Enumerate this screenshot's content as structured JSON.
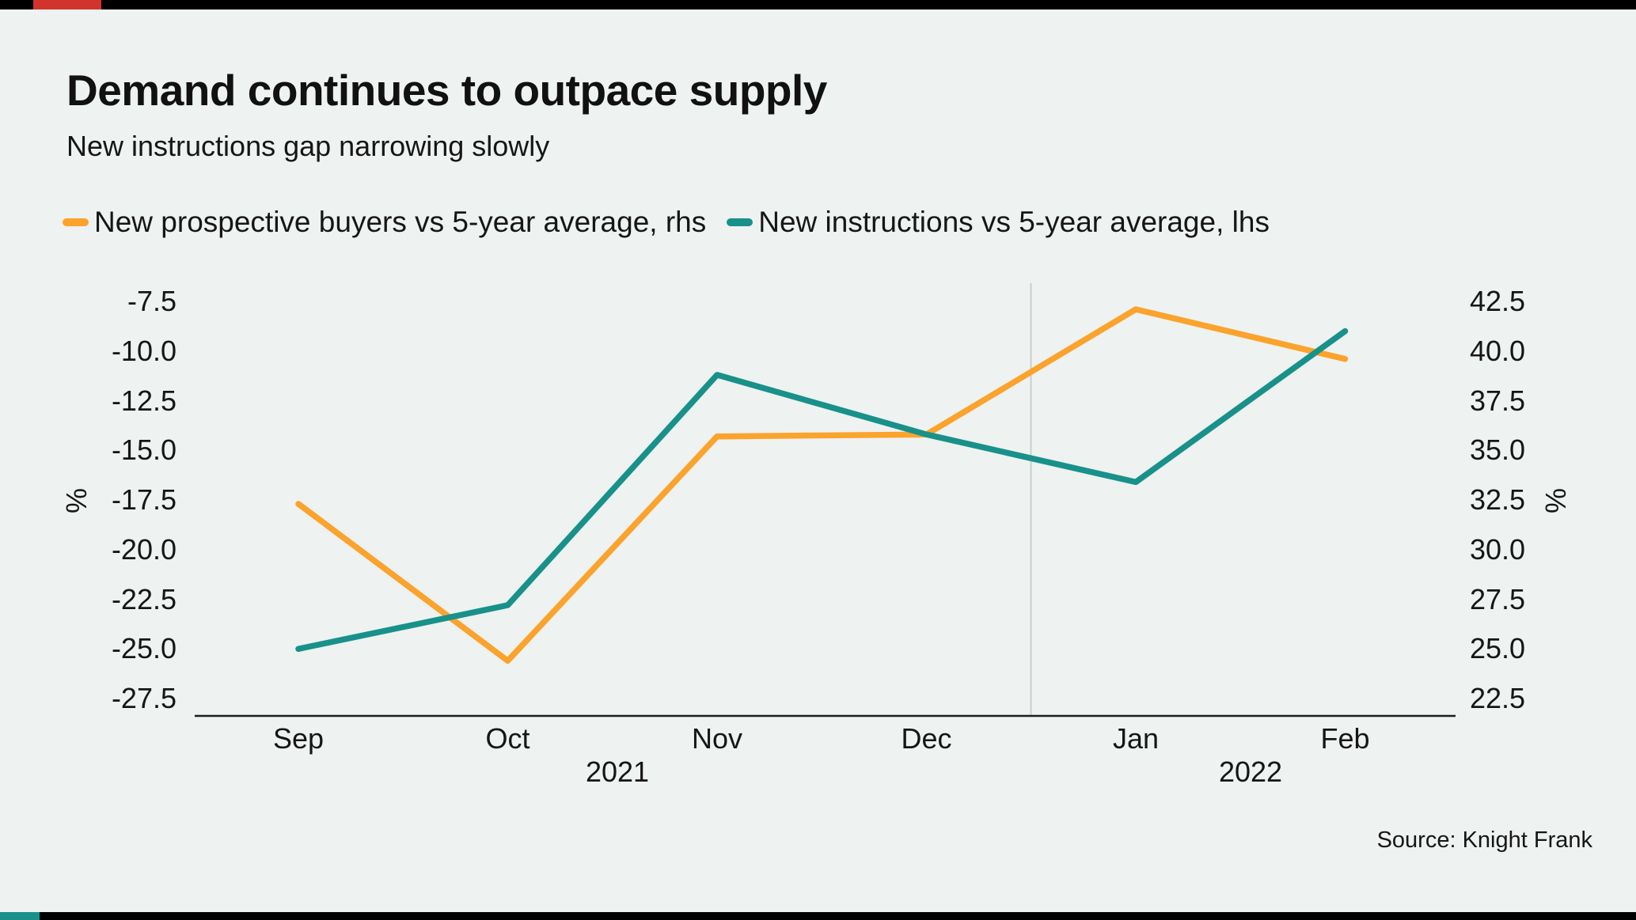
{
  "header": {
    "title": "Demand continues to outpace supply",
    "subtitle": "New instructions gap narrowing slowly"
  },
  "legend": [
    {
      "label": "New prospective buyers vs 5-year average, rhs",
      "color": "#FBA32C"
    },
    {
      "label": "New instructions vs 5-year average, lhs",
      "color": "#18918A"
    }
  ],
  "chart_data": {
    "type": "line",
    "title": "Demand continues to outpace supply",
    "subtitle": "New instructions gap narrowing slowly",
    "categories": [
      "Sep",
      "Oct",
      "Nov",
      "Dec",
      "Jan",
      "Feb"
    ],
    "year_labels": [
      "2021",
      "2022"
    ],
    "series": [
      {
        "name": "New prospective buyers vs 5-year average, rhs",
        "axis": "rhs",
        "color": "#FBA32C",
        "values": [
          32.3,
          24.4,
          35.7,
          35.8,
          42.1,
          39.6
        ]
      },
      {
        "name": "New instructions vs 5-year average, lhs",
        "axis": "lhs",
        "color": "#18918A",
        "values": [
          -25.0,
          -22.8,
          -11.2,
          -14.2,
          -16.6,
          -9.0
        ]
      }
    ],
    "left_axis": {
      "label": "%",
      "min": -27.5,
      "max": -7.5,
      "ticks": [
        "-7.5",
        "-10.0",
        "-12.5",
        "-15.0",
        "-17.5",
        "-20.0",
        "-22.5",
        "-25.0",
        "-27.5"
      ]
    },
    "right_axis": {
      "label": "%",
      "min": 22.5,
      "max": 42.5,
      "ticks": [
        "42.5",
        "40.0",
        "37.5",
        "35.0",
        "32.5",
        "30.0",
        "27.5",
        "25.0",
        "22.5"
      ]
    },
    "grid": "off",
    "legend_position": "top",
    "year_divider_between": [
      "Dec",
      "Jan"
    ]
  },
  "accents": {
    "top_bar_color": "#000000",
    "top_accent_color": "#D0342C",
    "bottom_bar_color": "#000000",
    "bottom_accent_color": "#18918A",
    "divider_color": "#C9CFCC",
    "axis_line_color": "#1D1D1B"
  },
  "footer": {
    "source": "Source: Knight Frank"
  }
}
